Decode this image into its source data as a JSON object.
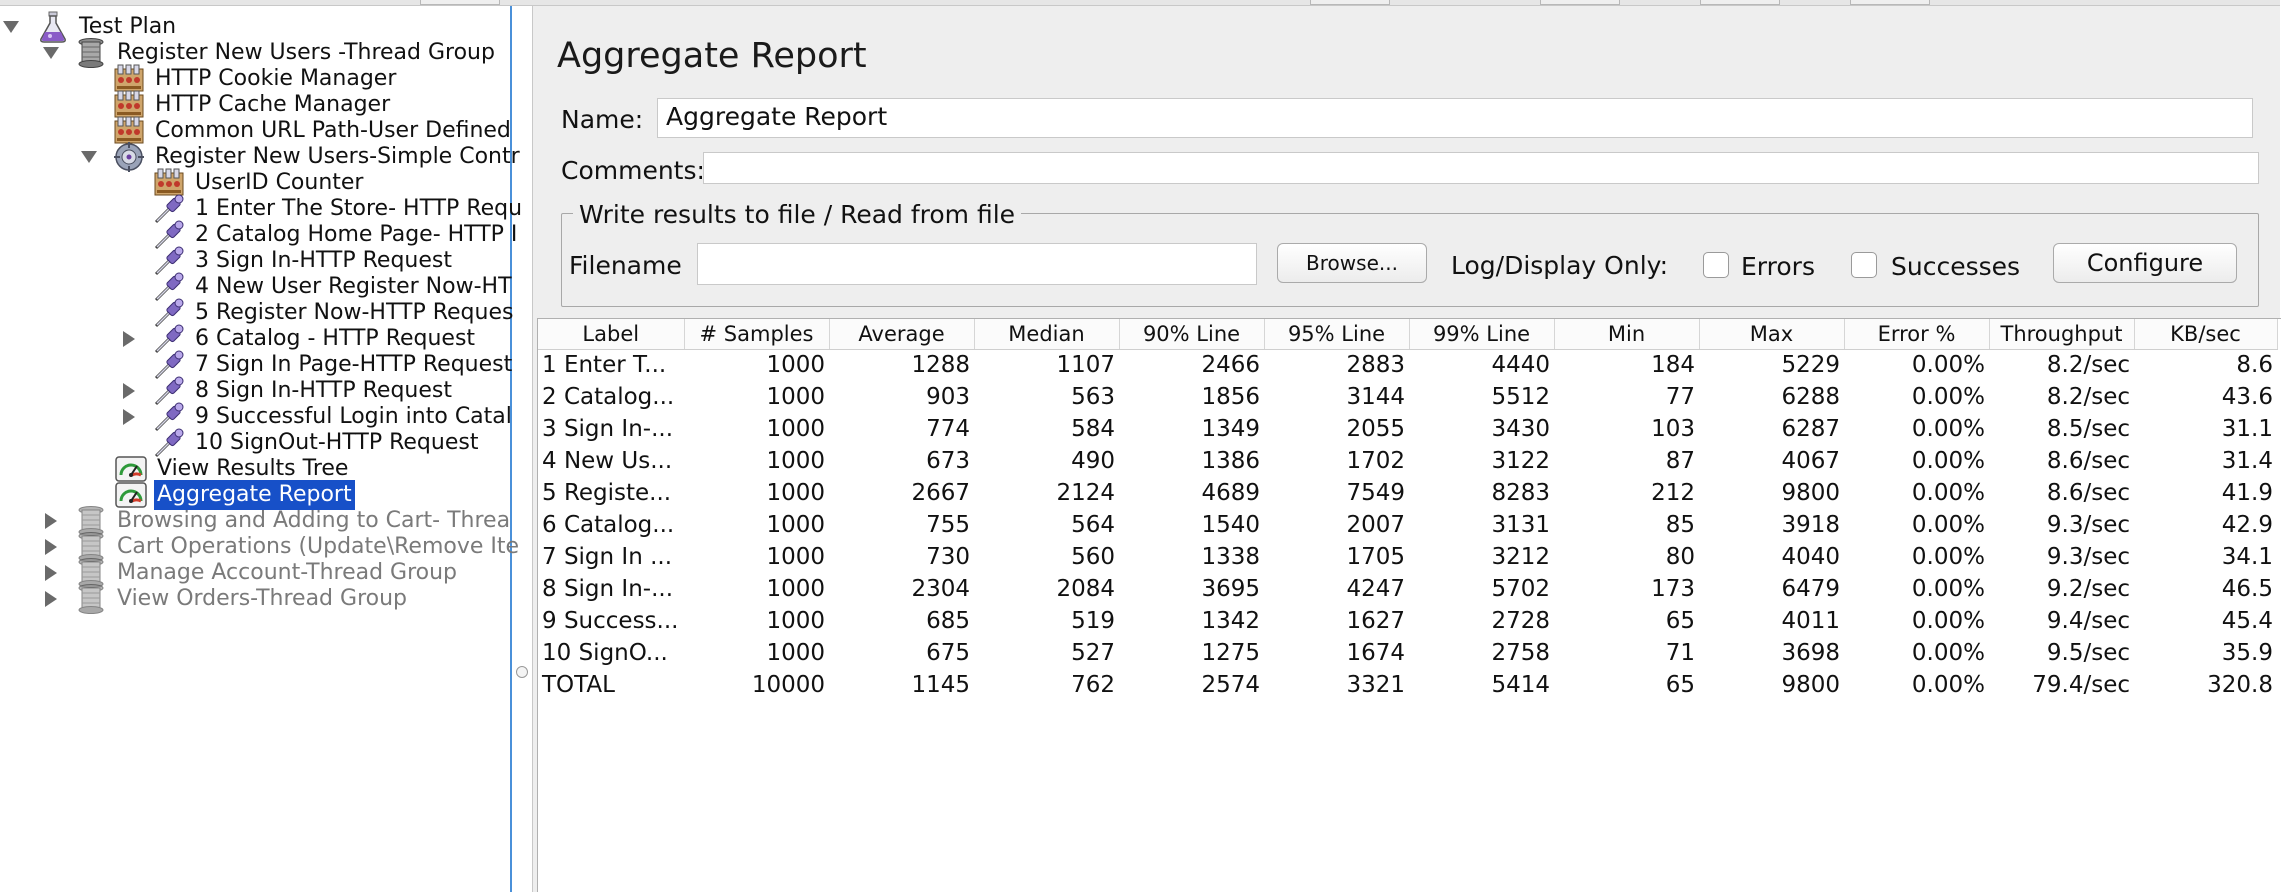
{
  "tree": {
    "items": [
      {
        "label": "Test Plan",
        "icon": "flask-icon"
      },
      {
        "label": "Register New Users -Thread Group",
        "icon": "spool-icon"
      },
      {
        "label": "HTTP Cookie Manager",
        "icon": "config-element-icon"
      },
      {
        "label": "HTTP Cache Manager",
        "icon": "config-element-icon"
      },
      {
        "label": "Common URL Path-User Defined",
        "icon": "config-element-icon"
      },
      {
        "label": "Register New Users-Simple Contr",
        "icon": "controller-icon"
      },
      {
        "label": "UserID Counter",
        "icon": "config-element-icon"
      },
      {
        "label": "1 Enter The Store- HTTP Requ",
        "icon": "sampler-pipette-icon"
      },
      {
        "label": "2 Catalog Home Page- HTTP I",
        "icon": "sampler-pipette-icon"
      },
      {
        "label": "3 Sign In-HTTP Request",
        "icon": "sampler-pipette-icon"
      },
      {
        "label": "4 New User Register Now-HT",
        "icon": "sampler-pipette-icon"
      },
      {
        "label": "5 Register Now-HTTP Reques",
        "icon": "sampler-pipette-icon"
      },
      {
        "label": "6 Catalog - HTTP Request",
        "icon": "sampler-pipette-icon"
      },
      {
        "label": "7 Sign In Page-HTTP Request",
        "icon": "sampler-pipette-icon"
      },
      {
        "label": "8 Sign In-HTTP Request",
        "icon": "sampler-pipette-icon"
      },
      {
        "label": "9 Successful Login into Catal",
        "icon": "sampler-pipette-icon"
      },
      {
        "label": "10 SignOut-HTTP Request",
        "icon": "sampler-pipette-icon"
      },
      {
        "label": "View Results Tree",
        "icon": "listener-gauge-icon"
      },
      {
        "label": "Aggregate Report",
        "icon": "listener-gauge-icon"
      },
      {
        "label": "Browsing and Adding to Cart- Threa",
        "icon": "spool-icon"
      },
      {
        "label": "Cart Operations (Update\\Remove Ite",
        "icon": "spool-icon"
      },
      {
        "label": "Manage Account-Thread Group",
        "icon": "spool-icon"
      },
      {
        "label": "View Orders-Thread Group",
        "icon": "spool-icon"
      }
    ]
  },
  "panel": {
    "title": "Aggregate Report",
    "name_label": "Name:",
    "name_value": "Aggregate Report",
    "comments_label": "Comments:",
    "comments_value": "",
    "group_title": "Write results to file / Read from file",
    "filename_label": "Filename",
    "filename_value": "",
    "browse_label": "Browse...",
    "log_display_label": "Log/Display Only:",
    "errors_label": "Errors",
    "successes_label": "Successes",
    "configure_label": "Configure"
  },
  "table": {
    "columns": [
      "Label",
      "# Samples",
      "Average",
      "Median",
      "90% Line",
      "95% Line",
      "99% Line",
      "Min",
      "Max",
      "Error %",
      "Throughput",
      "KB/sec"
    ],
    "rows": [
      [
        "1 Enter T...",
        "1000",
        "1288",
        "1107",
        "2466",
        "2883",
        "4440",
        "184",
        "5229",
        "0.00%",
        "8.2/sec",
        "8.6"
      ],
      [
        "2 Catalog...",
        "1000",
        "903",
        "563",
        "1856",
        "3144",
        "5512",
        "77",
        "6288",
        "0.00%",
        "8.2/sec",
        "43.6"
      ],
      [
        "3 Sign In-...",
        "1000",
        "774",
        "584",
        "1349",
        "2055",
        "3430",
        "103",
        "6287",
        "0.00%",
        "8.5/sec",
        "31.1"
      ],
      [
        "4 New Us...",
        "1000",
        "673",
        "490",
        "1386",
        "1702",
        "3122",
        "87",
        "4067",
        "0.00%",
        "8.6/sec",
        "31.4"
      ],
      [
        "5 Registe...",
        "1000",
        "2667",
        "2124",
        "4689",
        "7549",
        "8283",
        "212",
        "9800",
        "0.00%",
        "8.6/sec",
        "41.9"
      ],
      [
        "6 Catalog...",
        "1000",
        "755",
        "564",
        "1540",
        "2007",
        "3131",
        "85",
        "3918",
        "0.00%",
        "9.3/sec",
        "42.9"
      ],
      [
        "7 Sign In ...",
        "1000",
        "730",
        "560",
        "1338",
        "1705",
        "3212",
        "80",
        "4040",
        "0.00%",
        "9.3/sec",
        "34.1"
      ],
      [
        "8 Sign In-...",
        "1000",
        "2304",
        "2084",
        "3695",
        "4247",
        "5702",
        "173",
        "6479",
        "0.00%",
        "9.2/sec",
        "46.5"
      ],
      [
        "9 Success...",
        "1000",
        "685",
        "519",
        "1342",
        "1627",
        "2728",
        "65",
        "4011",
        "0.00%",
        "9.4/sec",
        "45.4"
      ],
      [
        "10 SignO...",
        "1000",
        "675",
        "527",
        "1275",
        "1674",
        "2758",
        "71",
        "3698",
        "0.00%",
        "9.5/sec",
        "35.9"
      ],
      [
        "TOTAL",
        "10000",
        "1145",
        "762",
        "2574",
        "3321",
        "5414",
        "65",
        "9800",
        "0.00%",
        "79.4/sec",
        "320.8"
      ]
    ]
  }
}
